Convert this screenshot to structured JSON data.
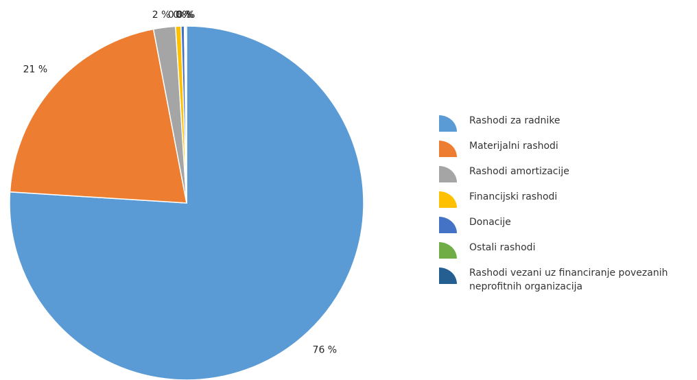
{
  "chart_data": {
    "type": "pie",
    "categories": [
      "Rashodi za radnike",
      "Materijalni rashodi",
      "Rashodi amortizacije",
      "Financijski rashodi",
      "Donacije",
      "Ostali rashodi",
      "Rashodi vezani uz financiranje povezanih neprofitnih organizacija"
    ],
    "values": [
      76,
      21,
      2,
      0.5,
      0.3,
      0.1,
      0.1
    ],
    "value_labels": [
      "76 %",
      "21 %",
      "2 %",
      "0 %",
      "0 %",
      "0 %",
      "0 %"
    ],
    "colors": [
      "#5b9bd5",
      "#ed7d31",
      "#a5a5a5",
      "#ffc000",
      "#4472c4",
      "#70ad47",
      "#255e91"
    ],
    "legend": "right"
  }
}
